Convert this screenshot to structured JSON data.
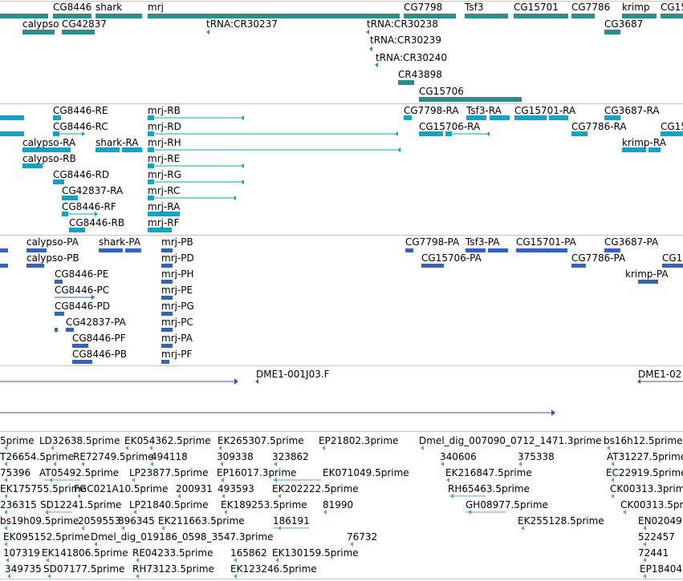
{
  "colors": {
    "gene": "#2a8f8b",
    "transcript": "#0ea5c6",
    "protein": "#2f63c6",
    "clone": "#6f3fa8",
    "est": "#5aa0d8",
    "separator": "#c8c8c8"
  },
  "gene_track": {
    "labels": [
      "CG8446",
      "shark",
      "mrj",
      "CG7798",
      "Tsf3",
      "CG15701",
      "CG7786",
      "krimp",
      "CG15",
      "calypso",
      "CG42837",
      "tRNA:CR30237",
      "tRNA:CR30238",
      "tRNA:CR30239",
      "tRNA:CR30240",
      "CR43898",
      "CG15706",
      "CG3687"
    ]
  },
  "transcript_track": {
    "labels": [
      "CG8446-RE",
      "mrj-RB",
      "CG7798-RA",
      "Tsf3-RA",
      "CG15701-RA",
      "CG3687-RA",
      "CG8446-RC",
      "mrj-RD",
      "CG15706-RA",
      "CG7786-RA",
      "CG15",
      "calypso-RA",
      "shark-RA",
      "mrj-RH",
      "krimp-RA",
      "calypso-RB",
      "mrj-RE",
      "CG8446-RD",
      "mrj-RG",
      "CG42837-RA",
      "mrj-RC",
      "CG8446-RF",
      "mrj-RA",
      "CG8446-RB",
      "mrj-RF"
    ]
  },
  "protein_track": {
    "labels": [
      "calypso-PA",
      "shark-PA",
      "mrj-PB",
      "CG7798-PA",
      "Tsf3-PA",
      "CG15701-PA",
      "CG3687-PA",
      "calypso-PB",
      "mrj-PD",
      "CG15706-PA",
      "CG7786-PA",
      "CG1",
      "CG8446-PE",
      "mrj-PH",
      "krimp-PA",
      "CG8446-PC",
      "mrj-PE",
      "CG8446-PD",
      "mrj-PG",
      "CG42837-PA",
      "mrj-PC",
      "CG8446-PF",
      "mrj-PA",
      "CG8446-PB",
      "mrj-PF"
    ]
  },
  "clone_track": {
    "labels": [
      "DME1-001J03.F",
      "DME1-02"
    ]
  },
  "est_track": {
    "labels": [
      "5prime",
      "LD32638.5prime",
      "EK054362.5prime",
      "EK265307.5prime",
      "EP21802.3prime",
      "Dmel_dig_007090_0712_1471.3prime",
      "bs16h12.5prime",
      "T26654.5prime",
      "RE72749.5prime",
      "494118",
      "309338",
      "323862",
      "340606",
      "375338",
      "AT31227.5prime",
      "75396",
      "AT05492.5prime",
      "LP23877.5prime",
      "EP16017.3prime",
      "EK071049.5prime",
      "EK216847.5prime",
      "EC22919.5prime",
      "EK175755.5prime",
      "FGC021A10.5prime",
      "200931",
      "493593",
      "EK202222.5prime",
      "RH65463.5prime",
      "CK00313.3prime",
      "236315",
      "SD12241.5prime",
      "LP21840.5prime",
      "EK189253.5prime",
      "81990",
      "GH08977.5prime",
      "CK00313.5prime",
      "bs19h09.5prime",
      "2059553",
      "896345",
      "EK211663.5prime",
      "186191",
      "EK255128.5prime",
      "EN02049",
      "EK095152.5prime",
      "Dmel_dig_019186_0598_3547.3prime",
      "76732",
      "522457",
      "107319",
      "EK141806.5prime",
      "RE04233.5prime",
      "165862",
      "EK130159.5prime",
      "72441",
      "349735",
      "SD07177.5prime",
      "RH73123.5prime",
      "EK123246.5prime",
      "EP18404"
    ]
  }
}
